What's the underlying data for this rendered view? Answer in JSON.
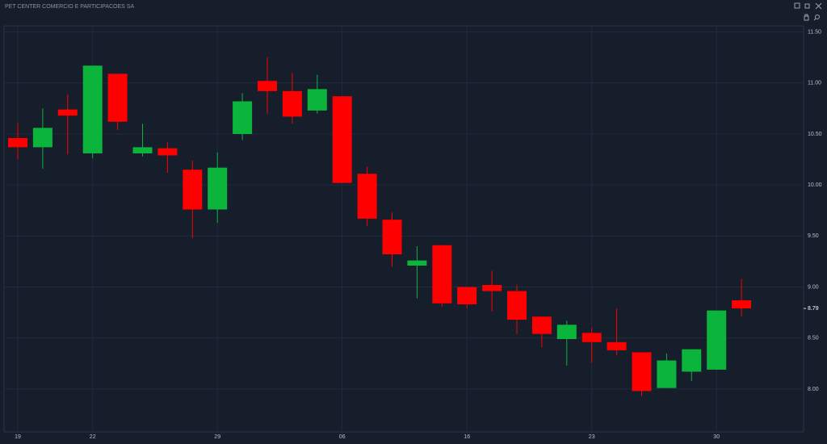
{
  "chart_data": {
    "type": "candlestick",
    "title": "PET CENTER COMERCIO E PARTICIPACOES SA",
    "categories": [
      "19",
      null,
      null,
      "22",
      null,
      null,
      null,
      null,
      "29",
      null,
      null,
      null,
      null,
      "06",
      null,
      null,
      null,
      null,
      "16",
      null,
      null,
      null,
      null,
      "23",
      null,
      null,
      null,
      null,
      "30",
      null
    ],
    "open": [
      10.46,
      10.37,
      10.74,
      10.31,
      11.09,
      10.31,
      10.36,
      10.15,
      9.76,
      10.5,
      11.02,
      10.92,
      10.73,
      10.87,
      10.11,
      9.66,
      9.21,
      9.41,
      9.0,
      9.02,
      8.96,
      8.71,
      8.49,
      8.55,
      8.46,
      8.36,
      8.01,
      8.17,
      8.19,
      8.87
    ],
    "high": [
      10.61,
      10.75,
      10.89,
      11.17,
      11.09,
      10.6,
      10.42,
      10.24,
      10.32,
      10.9,
      11.25,
      11.1,
      11.08,
      10.87,
      10.18,
      9.73,
      9.4,
      9.41,
      9.0,
      9.16,
      9.02,
      8.71,
      8.67,
      8.6,
      8.79,
      8.36,
      8.35,
      8.39,
      8.77,
      9.08
    ],
    "low": [
      10.25,
      10.16,
      10.3,
      10.26,
      10.54,
      10.28,
      10.12,
      9.48,
      9.63,
      10.44,
      10.7,
      10.6,
      10.7,
      10.02,
      9.6,
      9.2,
      8.89,
      8.81,
      8.79,
      8.76,
      8.54,
      8.41,
      8.23,
      8.26,
      8.33,
      7.93,
      8.01,
      8.08,
      8.19,
      8.71
    ],
    "close": [
      10.37,
      10.56,
      10.68,
      11.17,
      10.62,
      10.37,
      10.29,
      9.76,
      10.17,
      10.82,
      10.92,
      10.67,
      10.94,
      10.02,
      9.67,
      9.32,
      9.26,
      8.84,
      8.83,
      8.96,
      8.68,
      8.54,
      8.63,
      8.46,
      8.38,
      7.98,
      8.28,
      8.39,
      8.77,
      8.79
    ],
    "up_color": "#0bb53c",
    "down_color": "#ff0000",
    "ylim": [
      7.58,
      11.56
    ],
    "yticks": [
      {
        "value": 8,
        "label": "8.00"
      },
      {
        "value": 8.5,
        "label": "8.50"
      },
      {
        "value": 9,
        "label": "9.00"
      },
      {
        "value": 9.5,
        "label": "9.50"
      },
      {
        "value": 10,
        "label": "10.00"
      },
      {
        "value": 10.5,
        "label": "10.50"
      },
      {
        "value": 11,
        "label": "11.00"
      },
      {
        "value": 11.5,
        "label": "11.50"
      }
    ],
    "last_price": {
      "value": 8.79,
      "label": "8.79"
    },
    "grid": true
  }
}
